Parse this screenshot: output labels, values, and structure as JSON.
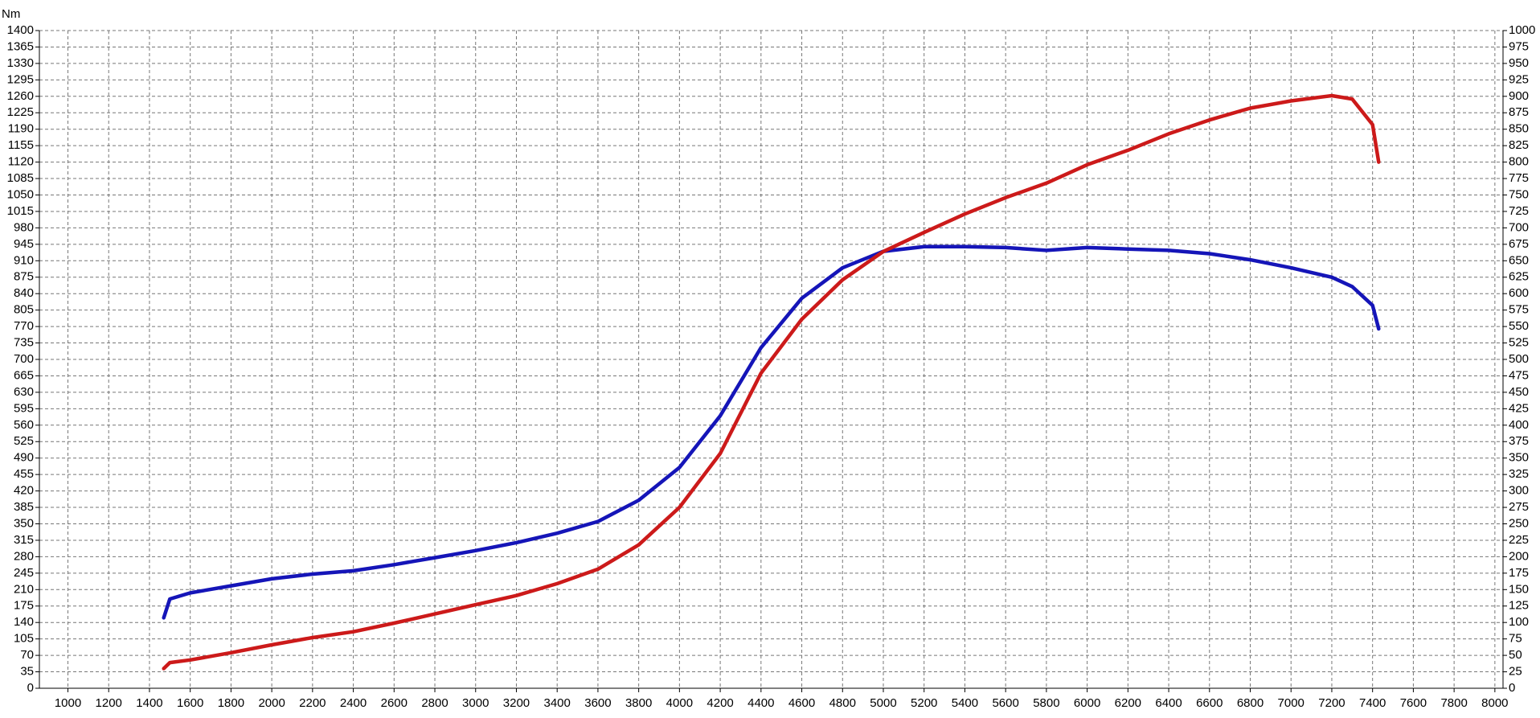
{
  "chart_data": {
    "type": "line",
    "y_label": "Nm",
    "x": [
      1470,
      1500,
      1600,
      1800,
      2000,
      2200,
      2400,
      2600,
      2800,
      3000,
      3200,
      3400,
      3600,
      3800,
      4000,
      4200,
      4400,
      4600,
      4800,
      5000,
      5200,
      5400,
      5600,
      5800,
      6000,
      6200,
      6400,
      6600,
      6800,
      7000,
      7200,
      7300,
      7400,
      7430
    ],
    "series": [
      {
        "color": "#1515b8",
        "values": [
          150,
          190,
          203,
          218,
          233,
          243,
          250,
          263,
          278,
          293,
          310,
          330,
          355,
          400,
          470,
          580,
          725,
          830,
          895,
          930,
          940,
          940,
          938,
          932,
          938,
          935,
          932,
          925,
          912,
          895,
          875,
          855,
          815,
          765
        ]
      },
      {
        "color": "#cc1a1a",
        "axis": "y2",
        "values": [
          30,
          39,
          43,
          54,
          66,
          77,
          86,
          99,
          113,
          127,
          141,
          159,
          181,
          218,
          275,
          357,
          479,
          561,
          621,
          664,
          693,
          721,
          746,
          768,
          796,
          818,
          843,
          864,
          882,
          893,
          901,
          896,
          857,
          800
        ]
      }
    ],
    "xlim": [
      860,
      8040
    ],
    "xticks": [
      1000,
      1200,
      1400,
      1600,
      1800,
      2000,
      2200,
      2400,
      2600,
      2800,
      3000,
      3200,
      3400,
      3600,
      3800,
      4000,
      4200,
      4400,
      4600,
      4800,
      5000,
      5200,
      5400,
      5600,
      5800,
      6000,
      6200,
      6400,
      6600,
      6800,
      7000,
      7200,
      7400,
      7600,
      7800,
      8000
    ],
    "ylim": [
      0,
      1400
    ],
    "yticks": [
      0,
      35,
      70,
      105,
      140,
      175,
      210,
      245,
      280,
      315,
      350,
      385,
      420,
      455,
      490,
      525,
      560,
      595,
      630,
      665,
      700,
      735,
      770,
      805,
      840,
      875,
      910,
      945,
      980,
      1015,
      1050,
      1085,
      1120,
      1155,
      1190,
      1225,
      1260,
      1295,
      1330,
      1365,
      1400
    ],
    "y2lim": [
      0,
      1000
    ],
    "y2ticks": [
      0,
      25,
      50,
      75,
      100,
      125,
      150,
      175,
      200,
      225,
      250,
      275,
      300,
      325,
      350,
      375,
      400,
      425,
      450,
      475,
      500,
      525,
      550,
      575,
      600,
      625,
      650,
      675,
      700,
      725,
      750,
      775,
      800,
      825,
      850,
      875,
      900,
      925,
      950,
      975,
      1000
    ],
    "grid": true
  }
}
